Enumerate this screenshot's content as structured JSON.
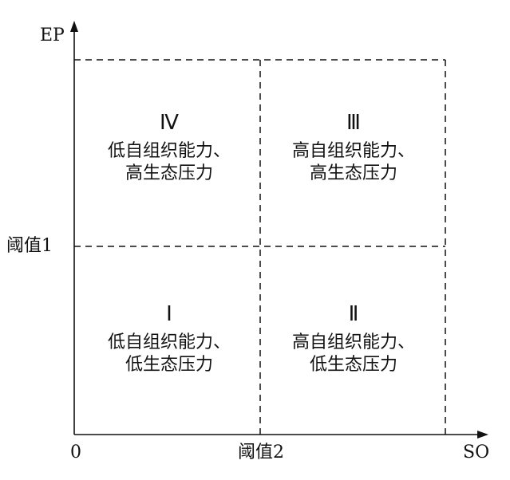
{
  "axes": {
    "y_label": "EP",
    "x_label": "SO",
    "origin": "0",
    "y_threshold": "阈值1",
    "x_threshold": "阈值2"
  },
  "quadrants": [
    {
      "numeral": "Ⅳ",
      "line1": "低自组织能力、",
      "line2": "高生态压力"
    },
    {
      "numeral": "Ⅲ",
      "line1": "高自组织能力、",
      "line2": "高生态压力"
    },
    {
      "numeral": "Ⅰ",
      "line1": "低自组织能力、",
      "line2": "低生态压力"
    },
    {
      "numeral": "Ⅱ",
      "line1": "高自组织能力、",
      "line2": "低生态压力"
    }
  ]
}
